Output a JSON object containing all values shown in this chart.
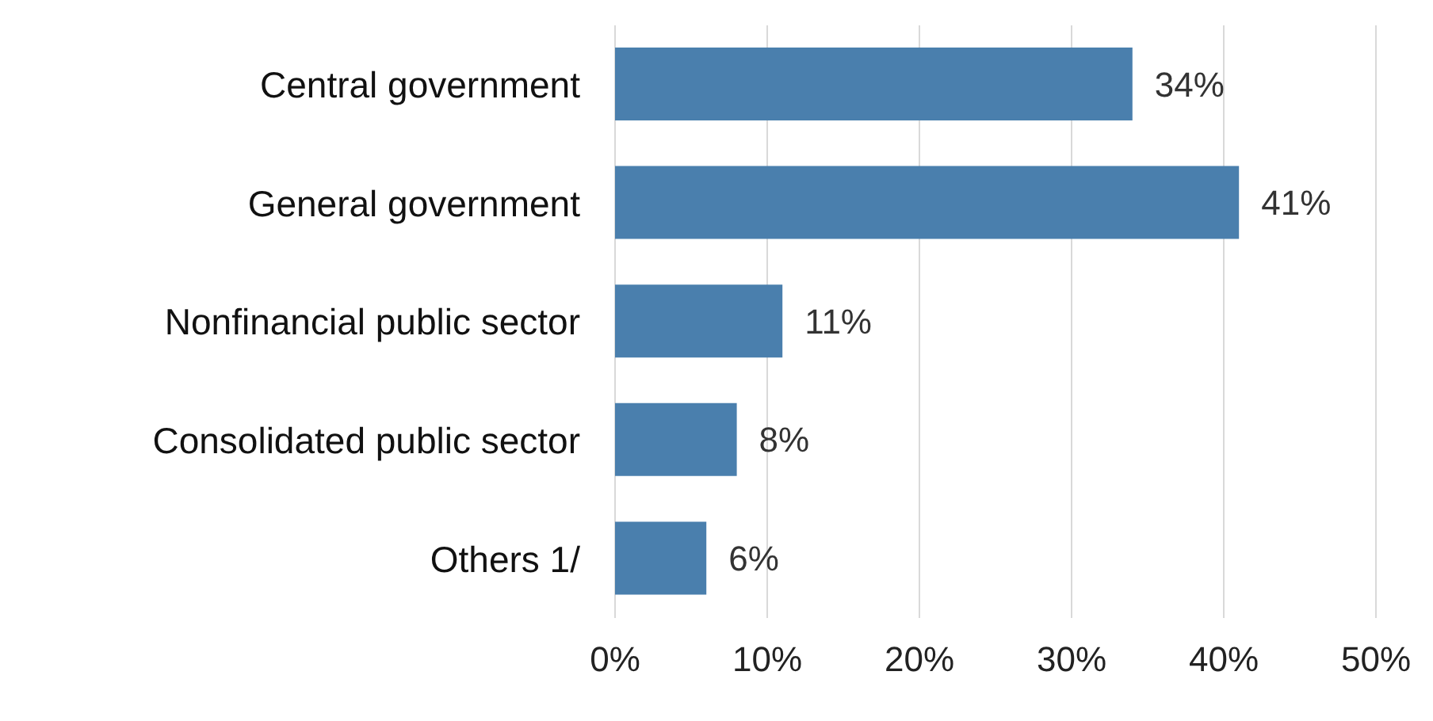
{
  "chart_data": {
    "type": "bar",
    "orientation": "horizontal",
    "categories": [
      "Central government",
      "General government",
      "Nonfinancial public sector",
      "Consolidated public sector",
      "Others 1/"
    ],
    "values": [
      34,
      41,
      11,
      8,
      6
    ],
    "value_labels": [
      "34%",
      "41%",
      "11%",
      "8%",
      "6%"
    ],
    "color": "#4a7fad",
    "xlim": [
      0,
      50
    ],
    "xticks": [
      {
        "value": 0,
        "label": "0%"
      },
      {
        "value": 10,
        "label": "10%"
      },
      {
        "value": 20,
        "label": "20%"
      },
      {
        "value": 30,
        "label": "30%"
      },
      {
        "value": 40,
        "label": "40%"
      },
      {
        "value": 50,
        "label": "50%"
      }
    ],
    "grid": "x"
  }
}
